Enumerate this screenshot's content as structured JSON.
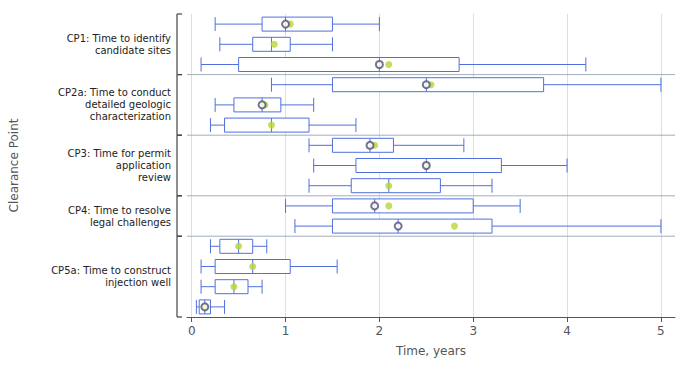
{
  "chart_data": {
    "type": "boxplot",
    "orientation": "horizontal",
    "xlabel": "Time, years",
    "ylabel": "Clearance Point",
    "xlim": [
      -0.05,
      5.15
    ],
    "xticks": [
      0,
      1,
      2,
      3,
      4,
      5
    ],
    "grid": true,
    "tick_labels": "x",
    "groups": [
      {
        "label": "CP1: Time to identify\ncandidate sites",
        "rows": [
          {
            "whislo": 0.25,
            "q1": 0.75,
            "med": 1.0,
            "q3": 1.5,
            "whishi": 2.0,
            "mean": 1.05,
            "open_median": true
          },
          {
            "whislo": 0.3,
            "q1": 0.65,
            "med": 0.85,
            "q3": 1.05,
            "whishi": 1.5,
            "mean": 0.88,
            "open_median": false
          },
          {
            "whislo": 0.1,
            "q1": 0.5,
            "med": 2.0,
            "q3": 2.85,
            "whishi": 4.2,
            "mean": 2.1,
            "open_median": true
          }
        ]
      },
      {
        "label": "CP2a: Time to conduct\ndetailed geologic\ncharacterization",
        "rows": [
          {
            "whislo": 0.85,
            "q1": 1.5,
            "med": 2.5,
            "q3": 3.75,
            "whishi": 5.0,
            "mean": 2.55,
            "open_median": true
          },
          {
            "whislo": 0.25,
            "q1": 0.45,
            "med": 0.75,
            "q3": 0.95,
            "whishi": 1.3,
            "mean": 0.78,
            "open_median": true
          },
          {
            "whislo": 0.2,
            "q1": 0.35,
            "med": 0.85,
            "q3": 1.25,
            "whishi": 1.75,
            "mean": 0.85,
            "open_median": false
          }
        ]
      },
      {
        "label": "CP3: Time for permit\napplication\nreview",
        "rows": [
          {
            "whislo": 1.25,
            "q1": 1.5,
            "med": 1.9,
            "q3": 2.15,
            "whishi": 2.9,
            "mean": 1.95,
            "open_median": true
          },
          {
            "whislo": 1.3,
            "q1": 1.75,
            "med": 2.5,
            "q3": 3.3,
            "whishi": 4.0,
            "mean": 2.5,
            "open_median": true
          },
          {
            "whislo": 1.25,
            "q1": 1.7,
            "med": 2.1,
            "q3": 2.65,
            "whishi": 3.2,
            "mean": 2.1,
            "open_median": false
          }
        ]
      },
      {
        "label": "CP4: Time to resolve\nlegal challenges",
        "rows": [
          {
            "whislo": 1.0,
            "q1": 1.5,
            "med": 1.95,
            "q3": 3.0,
            "whishi": 3.5,
            "mean": 2.1,
            "open_median": true
          },
          {
            "whislo": 1.1,
            "q1": 1.5,
            "med": 2.2,
            "q3": 3.2,
            "whishi": 5.0,
            "mean": 2.8,
            "open_median": true
          }
        ]
      },
      {
        "label": "CP5a: Time to construct\ninjection well",
        "rows": [
          {
            "whislo": 0.2,
            "q1": 0.3,
            "med": 0.5,
            "q3": 0.65,
            "whishi": 0.8,
            "mean": 0.5,
            "open_median": false
          },
          {
            "whislo": 0.1,
            "q1": 0.25,
            "med": 0.65,
            "q3": 1.05,
            "whishi": 1.55,
            "mean": 0.65,
            "open_median": false
          },
          {
            "whislo": 0.1,
            "q1": 0.25,
            "med": 0.45,
            "q3": 0.6,
            "whishi": 0.75,
            "mean": 0.45,
            "open_median": false
          },
          {
            "whislo": 0.05,
            "q1": 0.08,
            "med": 0.14,
            "q3": 0.2,
            "whishi": 0.35,
            "mean": 0.14,
            "open_median": true
          }
        ]
      }
    ]
  }
}
